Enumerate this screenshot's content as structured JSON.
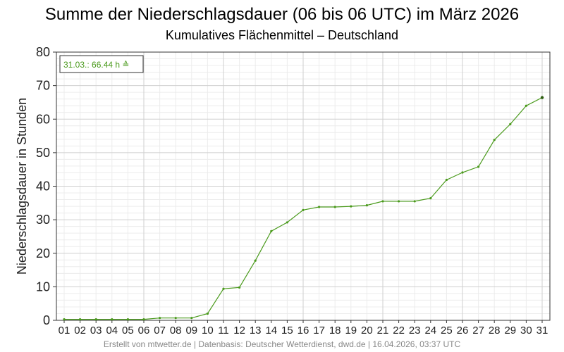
{
  "chart_data": {
    "type": "line",
    "title": "Summe der Niederschlagsdauer (06 bis 06 UTC) im März 2026",
    "subtitle": "Kumulatives Flächenmittel – Deutschland",
    "ylabel": "Niederschlagsdauer in Stunden",
    "xlabel": "",
    "ylim": [
      0,
      80
    ],
    "yticks": [
      "0",
      "10",
      "20",
      "30",
      "40",
      "50",
      "60",
      "70",
      "80"
    ],
    "categories": [
      "01",
      "02",
      "03",
      "04",
      "05",
      "06",
      "07",
      "08",
      "09",
      "10",
      "11",
      "12",
      "13",
      "14",
      "15",
      "16",
      "17",
      "18",
      "19",
      "20",
      "21",
      "22",
      "23",
      "24",
      "25",
      "26",
      "27",
      "28",
      "29",
      "30",
      "31"
    ],
    "series": [
      {
        "values": [
          0.3,
          0.3,
          0.3,
          0.3,
          0.3,
          0.3,
          0.7,
          0.7,
          0.7,
          2.0,
          9.4,
          9.8,
          17.8,
          26.6,
          29.2,
          32.9,
          33.8,
          33.8,
          34.0,
          34.3,
          35.5,
          35.5,
          35.5,
          36.4,
          41.9,
          44.1,
          45.8,
          53.8,
          58.5,
          64.0,
          66.44
        ],
        "color": "#4a9a1c"
      }
    ],
    "grid": true,
    "annotation": "31.03.: 66.44 h ≙",
    "footer": "Erstellt von mtwetter.de | Datenbasis: Deutscher Wetterdienst, dwd.de | 16.04.2026, 03:37 UTC"
  }
}
